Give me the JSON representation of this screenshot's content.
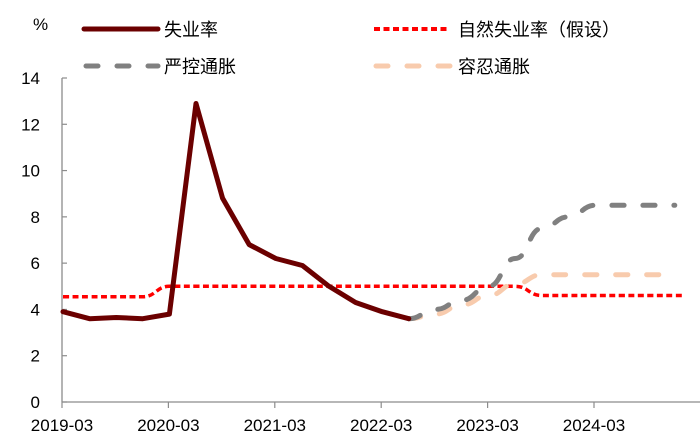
{
  "chart_data": {
    "type": "line",
    "title": "",
    "xlabel": "",
    "ylabel": "%",
    "ylim": [
      0,
      14
    ],
    "yticks": [
      0,
      2,
      4,
      6,
      8,
      10,
      12,
      14
    ],
    "xticks": [
      "2019-03",
      "2020-03",
      "2021-03",
      "2022-03",
      "2023-03",
      "2024-03"
    ],
    "grid": false,
    "legend_position": "top",
    "x": [
      "2019-03",
      "2019-06",
      "2019-09",
      "2019-12",
      "2020-03",
      "2020-06",
      "2020-09",
      "2020-12",
      "2021-03",
      "2021-06",
      "2021-09",
      "2021-12",
      "2022-03",
      "2022-06",
      "2022-09",
      "2022-12",
      "2023-03",
      "2023-06",
      "2023-09",
      "2023-12",
      "2024-03",
      "2024-06",
      "2024-09",
      "2024-12"
    ],
    "series": [
      {
        "name": "失业率",
        "color": "#6b0000",
        "style": "solid",
        "values": [
          3.9,
          3.6,
          3.65,
          3.6,
          3.8,
          12.9,
          8.8,
          6.8,
          6.2,
          5.9,
          5.0,
          4.3,
          3.9,
          3.6,
          null,
          null,
          null,
          null,
          null,
          null,
          null,
          null,
          null,
          null
        ]
      },
      {
        "name": "自然失业率（假设）",
        "color": "#ff0000",
        "style": "dotted",
        "values": [
          4.55,
          4.55,
          4.55,
          4.55,
          5.0,
          5.0,
          5.0,
          5.0,
          5.0,
          5.0,
          5.0,
          5.0,
          5.0,
          5.0,
          5.0,
          5.0,
          5.0,
          5.0,
          4.6,
          4.6,
          4.6,
          4.6,
          4.6,
          4.6
        ]
      },
      {
        "name": "严控通胀",
        "color": "#808080",
        "style": "dashed",
        "values": [
          null,
          null,
          null,
          null,
          null,
          null,
          null,
          null,
          null,
          null,
          null,
          null,
          null,
          3.6,
          4.0,
          4.4,
          5.0,
          6.2,
          7.5,
          8.0,
          8.5,
          8.5,
          8.5,
          8.5
        ]
      },
      {
        "name": "容忍通胀",
        "color": "#f8cbad",
        "style": "dashed",
        "values": [
          null,
          null,
          null,
          null,
          null,
          null,
          null,
          null,
          null,
          null,
          null,
          null,
          null,
          3.6,
          3.8,
          4.2,
          4.6,
          5.1,
          5.5,
          5.5,
          5.5,
          5.5,
          5.5,
          5.5
        ]
      }
    ]
  },
  "axis": {
    "unit": "%"
  },
  "legend": {
    "items": [
      {
        "label": "失业率"
      },
      {
        "label": "自然失业率（假设）"
      },
      {
        "label": "严控通胀"
      },
      {
        "label": "容忍通胀"
      }
    ]
  }
}
